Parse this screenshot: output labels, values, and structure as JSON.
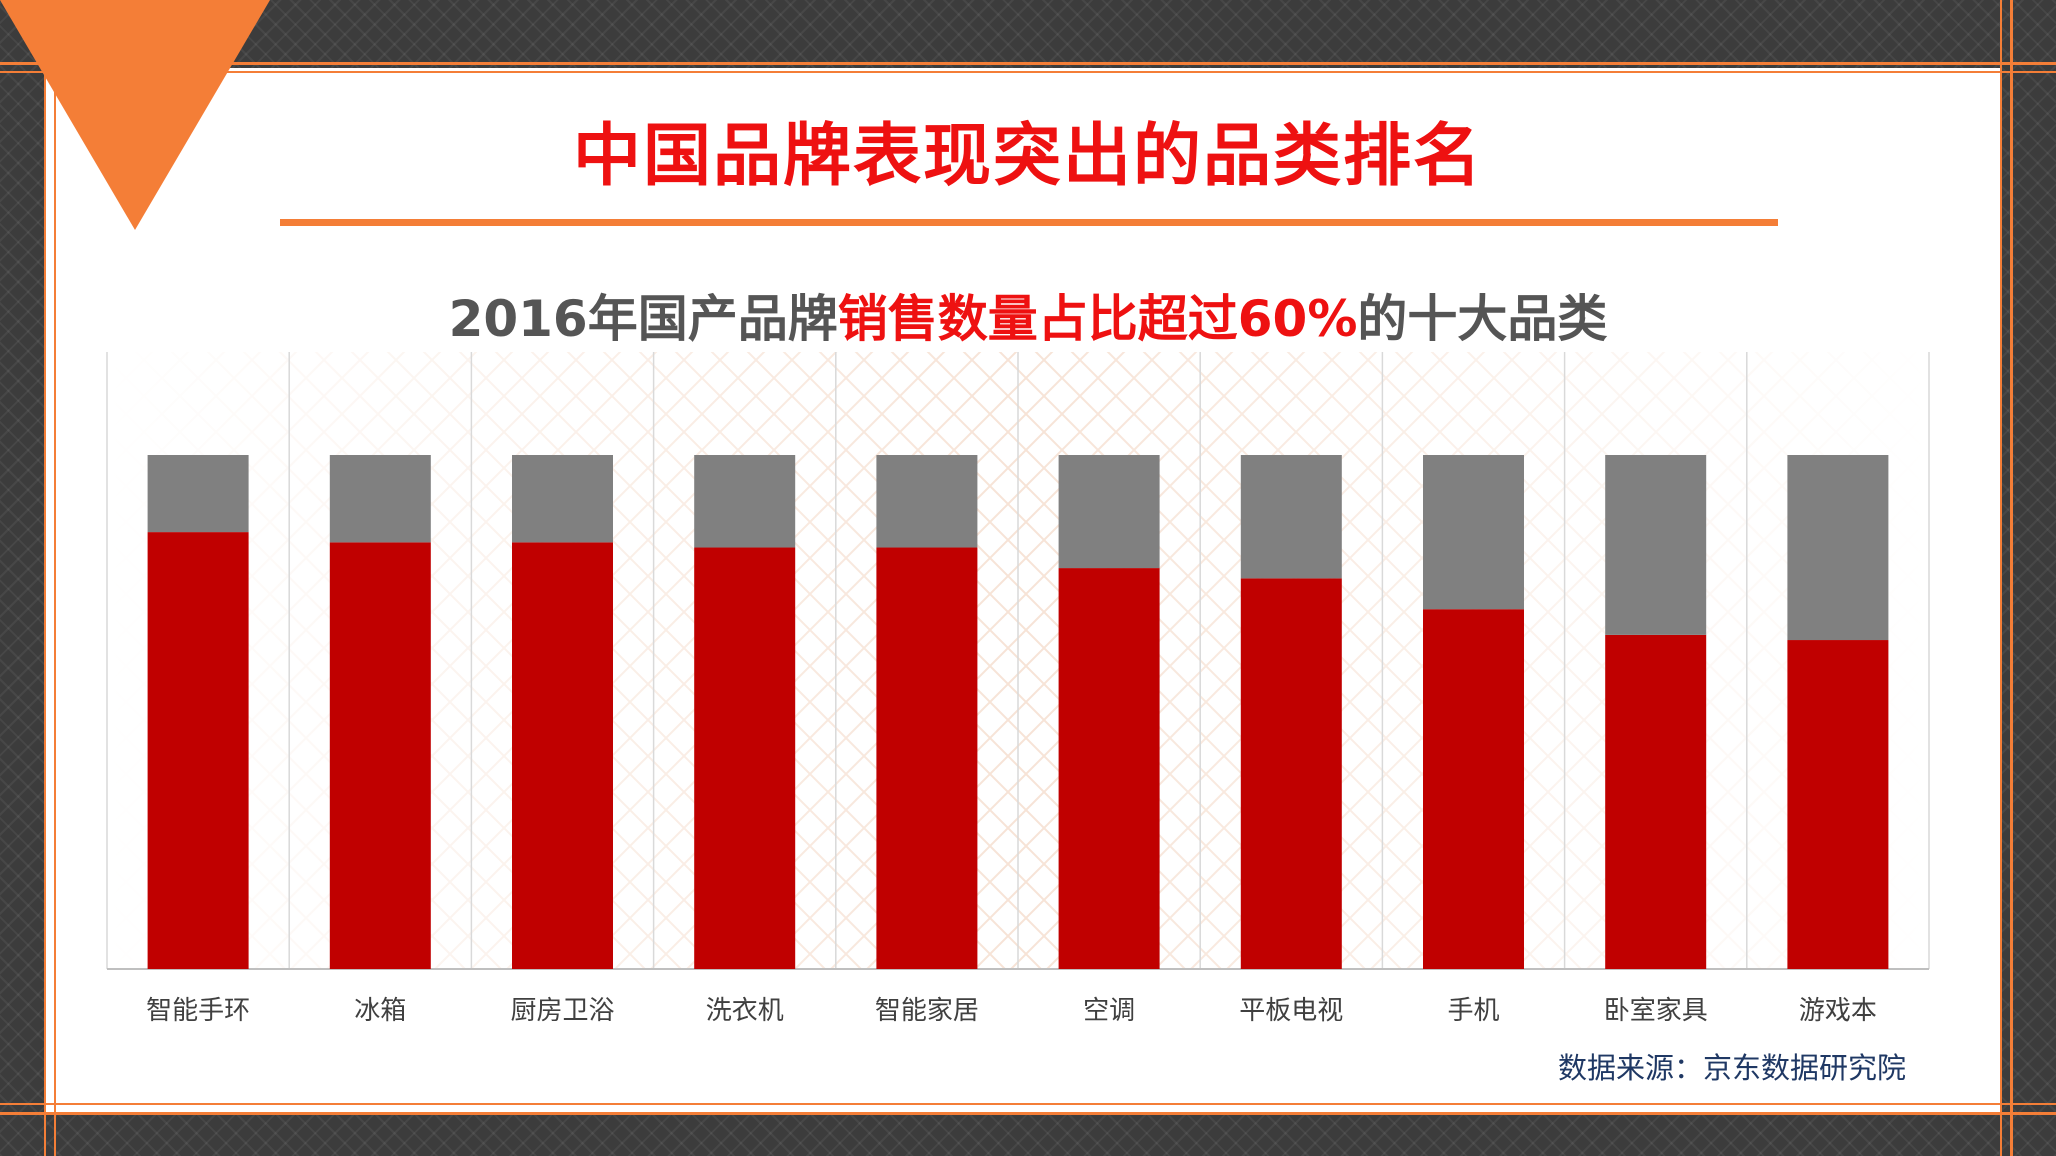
{
  "title": "中国品牌表现突出的品类排名",
  "subtitle": {
    "part1": "2016年国产品牌",
    "part2": "销售数量占比超过60%",
    "part3": "的十大品类"
  },
  "source": "数据来源：京东数据研究院",
  "colors": {
    "accent": "#f47e37",
    "title_red": "#ee1111",
    "domestic_bar": "#c00000",
    "other_bar": "#808080",
    "frame": "#3c3c3c"
  },
  "chart_data": {
    "type": "bar",
    "stacked": true,
    "categories": [
      "智能手环",
      "冰箱",
      "厨房卫浴",
      "洗衣机",
      "智能家居",
      "空调",
      "平板电视",
      "手机",
      "卧室家具",
      "游戏本"
    ],
    "series": [
      {
        "values": [
          85,
          83,
          83,
          82,
          82,
          78,
          76,
          70,
          65,
          64
        ]
      },
      {
        "values": [
          15,
          17,
          17,
          18,
          18,
          22,
          24,
          30,
          35,
          36
        ]
      }
    ],
    "ylim": [
      0,
      100
    ],
    "grid": false,
    "legend": "none"
  }
}
